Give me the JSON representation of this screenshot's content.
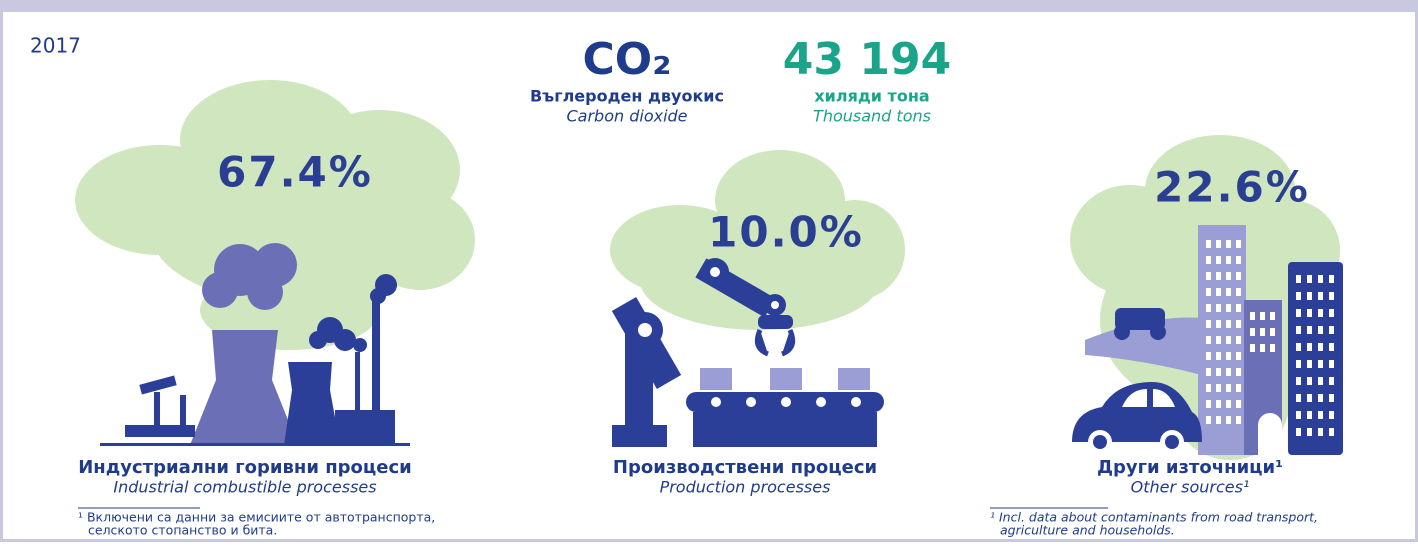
{
  "year": "2017",
  "gas": {
    "symbol": "CO₂",
    "name_bg": "Въглероден двуокис",
    "name_en": "Carbon dioxide"
  },
  "total": {
    "value": "43 194",
    "unit_bg": "хиляди тона",
    "unit_en": "Thousand tons"
  },
  "sources": [
    {
      "share": "67.4%",
      "label_bg": "Индустриални горивни процеси",
      "label_en": "Industrial combustible processes"
    },
    {
      "share": "10.0%",
      "label_bg": "Производствени процеси",
      "label_en": "Production processes"
    },
    {
      "share": "22.6%",
      "label_bg": "Други източници¹",
      "label_en": "Other sources¹"
    }
  ],
  "footnotes": {
    "bg": [
      "¹ Включени са данни за емисиите от автотранспорта,",
      "селското стопанство и бита."
    ],
    "en": [
      "¹ Incl. data about contaminants from road transport,",
      "agriculture and households."
    ]
  }
}
